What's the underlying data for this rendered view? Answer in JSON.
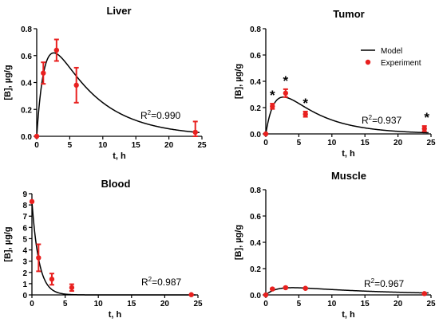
{
  "chart_data": [
    {
      "type": "scatter",
      "title": "Liver",
      "xlabel": "t, h",
      "ylabel": "[B], µg/g",
      "xlim": [
        0,
        25
      ],
      "ylim": [
        0,
        0.8
      ],
      "xticks": [
        0,
        5,
        10,
        15,
        20,
        25
      ],
      "yticks": [
        0.0,
        0.2,
        0.4,
        0.6,
        0.8
      ],
      "ytick_labels": [
        "0.0",
        "0.2",
        "0.4",
        "0.6",
        "0.8"
      ],
      "r2_label": "0.990",
      "model": {
        "peak_t": 2.2,
        "peak_value": 0.62,
        "k_abs": 0.8,
        "k_el": 0.15
      },
      "experiment": {
        "x": [
          0,
          1,
          3,
          6,
          24
        ],
        "y": [
          0.0,
          0.47,
          0.64,
          0.38,
          0.03
        ],
        "err": [
          0,
          0.08,
          0.08,
          0.13,
          0.08
        ]
      },
      "asterisks_at": []
    },
    {
      "type": "scatter",
      "title": "Tumor",
      "xlabel": "t, h",
      "ylabel": "[B], µg/g",
      "xlim": [
        0,
        25
      ],
      "ylim": [
        0,
        0.8
      ],
      "xticks": [
        0,
        5,
        10,
        15,
        20,
        25
      ],
      "yticks": [
        0.0,
        0.2,
        0.4,
        0.6,
        0.8
      ],
      "ytick_labels": [
        "0.0",
        "0.2",
        "0.4",
        "0.6",
        "0.8"
      ],
      "r2_label": "0.937",
      "legend": {
        "position": "top-right",
        "model_label": "Model",
        "experiment_label": "Experiment"
      },
      "model": {
        "peak_t": 2.5,
        "peak_value": 0.28,
        "k_abs": 0.7,
        "k_el": 0.17
      },
      "experiment": {
        "x": [
          0,
          1,
          3,
          6,
          24
        ],
        "y": [
          0.0,
          0.21,
          0.31,
          0.15,
          0.04
        ],
        "err": [
          0,
          0.02,
          0.03,
          0.02,
          0.02
        ]
      },
      "asterisks_at": [
        1,
        3,
        6,
        24
      ],
      "asterisk_symbol": "*"
    },
    {
      "type": "scatter",
      "title": "Blood",
      "xlabel": "t, h",
      "ylabel": "[B], µg/g",
      "xlim": [
        0,
        25
      ],
      "ylim": [
        0,
        9
      ],
      "xticks": [
        0,
        5,
        10,
        15,
        20,
        25
      ],
      "yticks": [
        0,
        1,
        2,
        3,
        4,
        5,
        6,
        7,
        8,
        9
      ],
      "ytick_labels": [
        "0",
        "1",
        "2",
        "3",
        "4",
        "5",
        "6",
        "7",
        "8",
        "9"
      ],
      "r2_label": "0.987",
      "model": {
        "c0": 8.3,
        "k_el": 0.95
      },
      "experiment": {
        "x": [
          0,
          1,
          3,
          6,
          24
        ],
        "y": [
          8.3,
          3.3,
          1.4,
          0.65,
          0.02
        ],
        "err": [
          0,
          1.2,
          0.5,
          0.3,
          0
        ]
      },
      "asterisks_at": []
    },
    {
      "type": "scatter",
      "title": "Muscle",
      "xlabel": "t, h",
      "ylabel": "[B], µg/g",
      "xlim": [
        0,
        25
      ],
      "ylim": [
        0,
        0.8
      ],
      "xticks": [
        0,
        5,
        10,
        15,
        20,
        25
      ],
      "yticks": [
        0.0,
        0.2,
        0.4,
        0.6,
        0.8
      ],
      "ytick_labels": [
        "0.0",
        "0.2",
        "0.4",
        "0.6",
        "0.8"
      ],
      "r2_label": "0.967",
      "model": {
        "peak_t": 3.5,
        "peak_value": 0.055,
        "k_abs": 0.6,
        "k_el": 0.07
      },
      "experiment": {
        "x": [
          0,
          1,
          3,
          6,
          24
        ],
        "y": [
          0.0,
          0.045,
          0.055,
          0.05,
          0.01
        ],
        "err": [
          0,
          0.004,
          0.004,
          0.004,
          0.003
        ]
      },
      "asterisks_at": []
    }
  ]
}
